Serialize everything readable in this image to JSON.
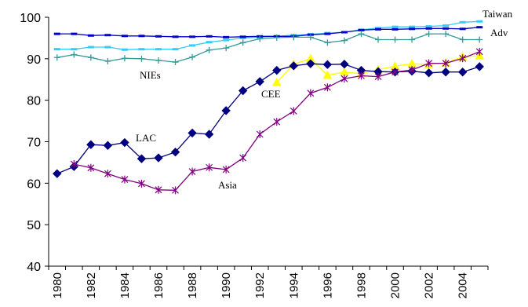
{
  "chart_data": {
    "type": "line",
    "x": [
      1980,
      1981,
      1982,
      1983,
      1984,
      1985,
      1986,
      1987,
      1988,
      1989,
      1990,
      1991,
      1992,
      1993,
      1994,
      1995,
      1996,
      1997,
      1998,
      1999,
      2000,
      2001,
      2002,
      2003,
      2004,
      2005
    ],
    "x_tick_labels": [
      "1980",
      "1982",
      "1984",
      "1986",
      "1988",
      "1990",
      "1992",
      "1994",
      "1996",
      "1998",
      "2000",
      "2002",
      "2004"
    ],
    "ylim": [
      40,
      100
    ],
    "y_ticks": [
      40,
      50,
      60,
      70,
      80,
      90,
      100
    ],
    "grid": false,
    "series": [
      {
        "name": "Taiwan",
        "color": "#33CCFF",
        "marker": "dash",
        "values": [
          92.3,
          92.3,
          92.8,
          92.8,
          92.2,
          92.3,
          92.3,
          92.3,
          93.2,
          94.0,
          94.5,
          95.0,
          95.2,
          95.4,
          95.7,
          95.9,
          96.2,
          96.4,
          97.0,
          97.4,
          97.7,
          97.7,
          97.8,
          98.0,
          98.8,
          99.0
        ]
      },
      {
        "name": "Adv",
        "color": "#0000CC",
        "marker": "dash",
        "values": [
          96.0,
          96.0,
          95.6,
          95.7,
          95.5,
          95.5,
          95.4,
          95.3,
          95.3,
          95.4,
          95.2,
          95.3,
          95.4,
          95.4,
          95.4,
          95.8,
          96.0,
          96.4,
          96.9,
          97.1,
          97.1,
          97.2,
          97.3,
          97.3,
          97.2,
          97.6
        ]
      },
      {
        "name": "NIEs",
        "color": "#339999",
        "marker": "plus",
        "values": [
          90.3,
          91.0,
          90.3,
          89.4,
          90.1,
          90.0,
          89.6,
          89.2,
          90.4,
          92.1,
          92.6,
          93.9,
          94.8,
          95.1,
          95.2,
          95.2,
          93.9,
          94.4,
          96.0,
          94.6,
          94.6,
          94.6,
          96.0,
          96.0,
          94.6,
          94.6
        ]
      },
      {
        "name": "CEE",
        "color": "#FFFF00",
        "marker": "triangle",
        "values": [
          null,
          null,
          null,
          null,
          null,
          null,
          null,
          null,
          null,
          null,
          null,
          null,
          null,
          84.3,
          88.7,
          90.0,
          86.0,
          86.8,
          86.4,
          87.4,
          88.2,
          88.8,
          88.6,
          89.0,
          90.5,
          90.7
        ]
      },
      {
        "name": "LAC",
        "color": "#000080",
        "marker": "diamond",
        "values": [
          62.3,
          64.0,
          69.3,
          69.1,
          69.8,
          65.9,
          66.1,
          67.5,
          72.1,
          71.8,
          77.5,
          82.3,
          84.5,
          87.2,
          88.3,
          88.8,
          88.6,
          88.7,
          87.2,
          86.9,
          86.8,
          87.0,
          86.6,
          86.8,
          86.8,
          88.1
        ]
      },
      {
        "name": "Asia",
        "color": "#800080",
        "marker": "asterisk",
        "values": [
          null,
          64.6,
          63.7,
          62.3,
          60.9,
          59.9,
          58.4,
          58.3,
          62.8,
          63.8,
          63.3,
          66.1,
          71.8,
          74.8,
          77.4,
          81.7,
          83.1,
          85.2,
          85.9,
          85.7,
          86.8,
          87.3,
          88.9,
          88.9,
          90.1,
          91.7
        ]
      }
    ]
  },
  "labels": {
    "taiwan": "Taiwan",
    "adv": "Adv",
    "nies": "NIEs",
    "cee": "CEE",
    "lac": "LAC",
    "asia": "Asia"
  }
}
